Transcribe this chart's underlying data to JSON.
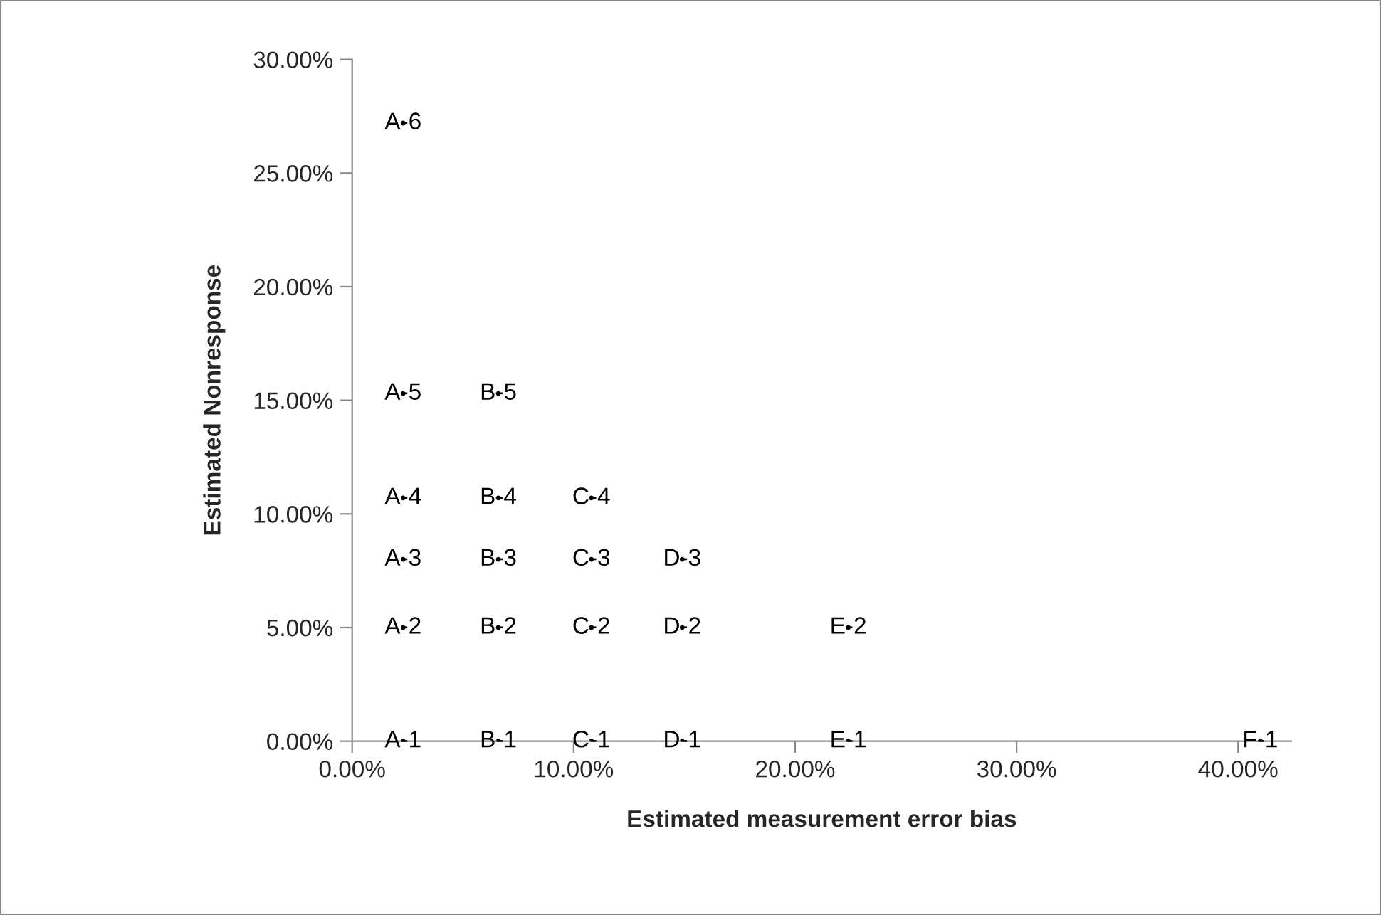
{
  "chart_data": {
    "type": "scatter",
    "xlabel": "Estimated measurement error bias",
    "ylabel": "Estimated Nonresponse",
    "x": [
      2.3,
      2.3,
      2.3,
      2.3,
      2.3,
      2.3,
      6.6,
      6.6,
      6.6,
      6.6,
      6.6,
      10.8,
      10.8,
      10.8,
      10.8,
      14.9,
      14.9,
      14.9,
      22.4,
      22.4,
      41.0
    ],
    "series": [
      {
        "color": "#000000",
        "values": [
          0,
          5,
          8,
          10.7,
          15.3,
          27.2,
          0,
          5,
          8,
          10.7,
          15.3,
          0,
          5,
          8,
          10.7,
          0,
          5,
          8,
          0,
          5,
          0
        ],
        "value_labels": [
          "A-1",
          "A-2",
          "A-3",
          "A-4",
          "A-5",
          "A-6",
          "B-1",
          "B-2",
          "B-3",
          "B-4",
          "B-5",
          "C-1",
          "C-2",
          "C-3",
          "C-4",
          "D-1",
          "D-2",
          "D-3",
          "E-1",
          "E-2",
          "F-1"
        ]
      }
    ],
    "grid": false,
    "legend": false,
    "xlim": [
      0,
      42.4
    ],
    "xticks": [
      {
        "value": 0,
        "label": "0.00%"
      },
      {
        "value": 10,
        "label": "10.00%"
      },
      {
        "value": 20,
        "label": "20.00%"
      },
      {
        "value": 30,
        "label": "30.00%"
      },
      {
        "value": 40,
        "label": "40.00%"
      }
    ],
    "ylim": [
      0,
      30
    ],
    "yticks": [
      {
        "value": 0,
        "label": "0.00%"
      },
      {
        "value": 5,
        "label": "5.00%"
      },
      {
        "value": 10,
        "label": "10.00%"
      },
      {
        "value": 15,
        "label": "15.00%"
      },
      {
        "value": 20,
        "label": "20.00%"
      },
      {
        "value": 25,
        "label": "25.00%"
      },
      {
        "value": 30,
        "label": "30.00%"
      }
    ]
  }
}
